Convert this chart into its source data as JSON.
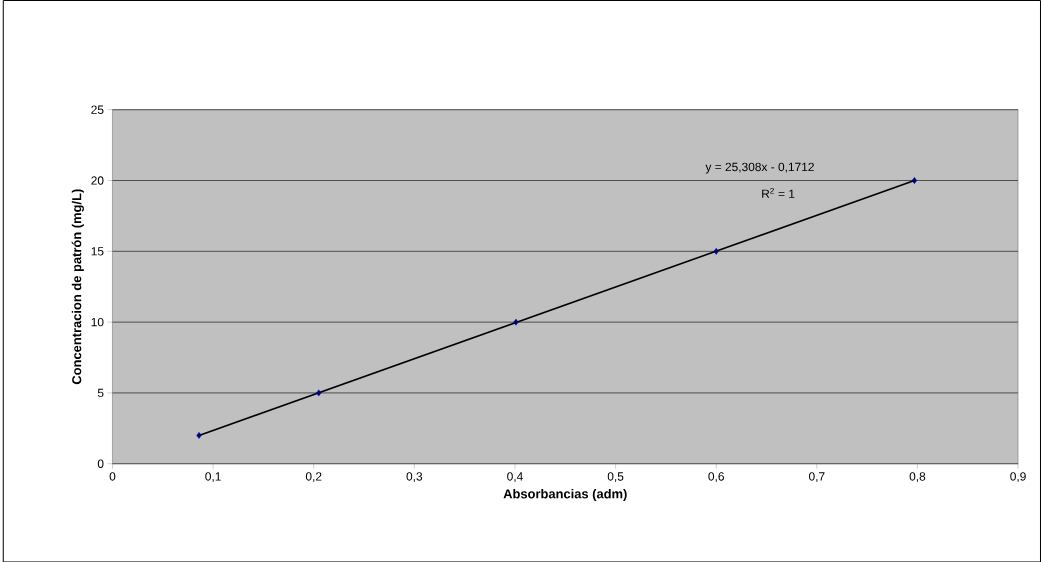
{
  "chart_data": {
    "type": "scatter",
    "xlabel": "Absorbancias  (adm)",
    "ylabel": "Concentracion de patrón (mg/L)",
    "annotations": [
      "y = 25,308x - 0,1712",
      "R$^{2}$ = 1"
    ],
    "series": [
      {
        "color": "#000080",
        "marker": "diamond",
        "x": [
          0.086,
          0.205,
          0.401,
          0.6,
          0.797
        ],
        "values": [
          2,
          5,
          10,
          15,
          20
        ]
      },
      {
        "type": "line",
        "color": "#000000",
        "marker": "none",
        "line_style": "solid",
        "x": [
          0.086,
          0.797
        ],
        "values": [
          2,
          20
        ]
      }
    ],
    "xlim": [
      0,
      0.9
    ],
    "ylim": [
      0,
      25
    ],
    "xticks": [
      0,
      {
        "value": 0.1,
        "label": "0,1"
      },
      {
        "value": 0.2,
        "label": "0,2"
      },
      {
        "value": 0.3,
        "label": "0,3"
      },
      {
        "value": 0.4,
        "label": "0,4"
      },
      {
        "value": 0.5,
        "label": "0,5"
      },
      {
        "value": 0.6,
        "label": "0,6"
      },
      {
        "value": 0.7,
        "label": "0,7"
      },
      {
        "value": 0.8,
        "label": "0,8"
      },
      {
        "value": 0.9,
        "label": "0,9"
      }
    ],
    "yticks": [
      0,
      5,
      10,
      15,
      20,
      25
    ],
    "grid": "y"
  }
}
